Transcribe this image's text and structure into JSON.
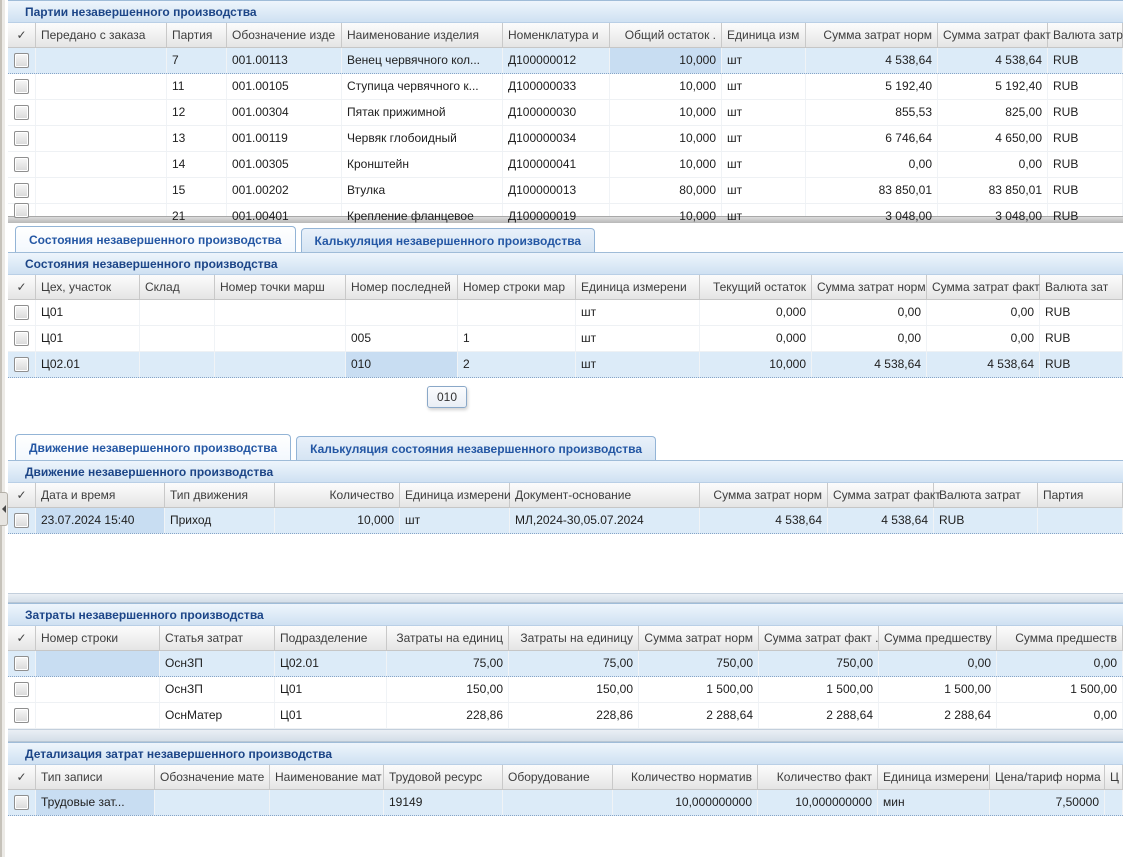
{
  "colors": {
    "panel_title_text": "#1c4587",
    "tab_text": "#2457a4",
    "selected_row_bg": "#dcebf8",
    "selected_cell_bg": "#c8ddf2",
    "panel_header_gradient_top": "#eef5fc",
    "panel_header_gradient_bottom": "#cfe1f2"
  },
  "icons": {
    "select_all_check": "✓",
    "collapse_arrow": "left-triangle"
  },
  "tooltip": {
    "text": "010"
  },
  "tab_groups": [
    {
      "tabs": [
        {
          "label": "Состояния незавершенного производства",
          "active": true
        },
        {
          "label": "Калькуляция незавершенного производства",
          "active": false
        }
      ]
    },
    {
      "tabs": [
        {
          "label": "Движение незавершенного производства",
          "active": true
        },
        {
          "label": "Калькуляция состояния незавершенного производства",
          "active": false
        }
      ]
    }
  ],
  "tables": [
    {
      "id": "batches",
      "title": "Партии незавершенного производства",
      "columns": [
        {
          "label": "Передано с заказа",
          "width": 131,
          "align": "left"
        },
        {
          "label": "Партия",
          "width": 60,
          "align": "left"
        },
        {
          "label": "Обозначение изде",
          "width": 115,
          "align": "left"
        },
        {
          "label": "Наименование изделия",
          "width": 161,
          "align": "left"
        },
        {
          "label": "Номенклатура и",
          "width": 107,
          "align": "left"
        },
        {
          "label": "Общий остаток   .",
          "width": 112,
          "align": "right"
        },
        {
          "label": "Единица изм",
          "width": 84,
          "align": "left"
        },
        {
          "label": "Сумма затрат норм",
          "width": 132,
          "align": "right"
        },
        {
          "label": "Сумма затрат факт",
          "width": 110,
          "align": "right"
        },
        {
          "label": "Валюта затр",
          "width": 75,
          "align": "left"
        }
      ],
      "rows": [
        [
          "",
          "7",
          "001.00113",
          "Венец червячного кол...",
          "Д100000012",
          "10,000",
          "шт",
          "4 538,64",
          "4 538,64",
          "RUB"
        ],
        [
          "",
          "11",
          "001.00105",
          "Ступица червячного к...",
          "Д100000033",
          "10,000",
          "шт",
          "5 192,40",
          "5 192,40",
          "RUB"
        ],
        [
          "",
          "12",
          "001.00304",
          "Пятак прижимной",
          "Д100000030",
          "10,000",
          "шт",
          "855,53",
          "825,00",
          "RUB"
        ],
        [
          "",
          "13",
          "001.00119",
          "Червяк глобоидный",
          "Д100000034",
          "10,000",
          "шт",
          "6 746,64",
          "4 650,00",
          "RUB"
        ],
        [
          "",
          "14",
          "001.00305",
          "Кронштейн",
          "Д100000041",
          "10,000",
          "шт",
          "0,00",
          "0,00",
          "RUB"
        ],
        [
          "",
          "15",
          "001.00202",
          "Втулка",
          "Д100000013",
          "80,000",
          "шт",
          "83 850,01",
          "83 850,01",
          "RUB"
        ]
      ],
      "cut_row": [
        "",
        "21",
        "001.00401",
        "Крепление фланцевое",
        "Д100000019",
        "10,000",
        "шт",
        "3 048,00",
        "3 048,00",
        "RUB"
      ],
      "selected_row": 0,
      "selected_cell": {
        "row": 0,
        "col": 5
      }
    },
    {
      "id": "states",
      "title": "Состояния незавершенного производства",
      "columns": [
        {
          "label": "Цех, участок",
          "width": 104,
          "align": "left"
        },
        {
          "label": "Склад",
          "width": 75,
          "align": "left"
        },
        {
          "label": "Номер точки марш",
          "width": 131,
          "align": "left"
        },
        {
          "label": "Номер последней",
          "width": 112,
          "align": "left"
        },
        {
          "label": "Номер строки мар",
          "width": 118,
          "align": "left"
        },
        {
          "label": "Единица измерени",
          "width": 124,
          "align": "left"
        },
        {
          "label": "Текущий остаток",
          "width": 112,
          "align": "right"
        },
        {
          "label": "Сумма затрат норм",
          "width": 115,
          "align": "right"
        },
        {
          "label": "Сумма затрат факт",
          "width": 113,
          "align": "right"
        },
        {
          "label": "Валюта зат",
          "width": 83,
          "align": "left"
        }
      ],
      "rows": [
        [
          "Ц01",
          "",
          "",
          "",
          "",
          "шт",
          "0,000",
          "0,00",
          "0,00",
          "RUB"
        ],
        [
          "Ц01",
          "",
          "",
          "005",
          "1",
          "шт",
          "0,000",
          "0,00",
          "0,00",
          "RUB"
        ],
        [
          "Ц02.01",
          "",
          "",
          "010",
          "2",
          "шт",
          "10,000",
          "4 538,64",
          "4 538,64",
          "RUB"
        ]
      ],
      "selected_row": 2,
      "selected_cell": {
        "row": 2,
        "col": 3
      }
    },
    {
      "id": "movement",
      "title": "Движение незавершенного производства",
      "columns": [
        {
          "label": "Дата и время",
          "width": 129,
          "align": "left"
        },
        {
          "label": "Тип движения",
          "width": 110,
          "align": "left"
        },
        {
          "label": "Количество",
          "width": 125,
          "align": "right"
        },
        {
          "label": "Единица измерени",
          "width": 110,
          "align": "left"
        },
        {
          "label": "Документ-основание",
          "width": 190,
          "align": "left"
        },
        {
          "label": "Сумма затрат норм",
          "width": 128,
          "align": "right"
        },
        {
          "label": "Сумма затрат факт",
          "width": 106,
          "align": "right"
        },
        {
          "label": "Валюта затрат",
          "width": 104,
          "align": "left"
        },
        {
          "label": "Партия",
          "width": 85,
          "align": "left"
        }
      ],
      "rows": [
        [
          "23.07.2024 15:40",
          "Приход",
          "10,000",
          "шт",
          "МЛ,2024-30,05.07.2024",
          "4 538,64",
          "4 538,64",
          "RUB",
          ""
        ]
      ],
      "selected_row": 0,
      "selected_cell": {
        "row": 0,
        "col": 0
      }
    },
    {
      "id": "costs",
      "title": "Затраты незавершенного производства",
      "columns": [
        {
          "label": "Номер строки",
          "width": 124,
          "align": "left"
        },
        {
          "label": "Статья затрат",
          "width": 115,
          "align": "left"
        },
        {
          "label": "Подразделение",
          "width": 112,
          "align": "left"
        },
        {
          "label": "Затраты на единиц",
          "width": 122,
          "align": "right"
        },
        {
          "label": "Затраты на единицу",
          "width": 130,
          "align": "right"
        },
        {
          "label": "Сумма затрат норм",
          "width": 120,
          "align": "right"
        },
        {
          "label": "Сумма затрат факт   .",
          "width": 120,
          "align": "right"
        },
        {
          "label": "Сумма предшеству",
          "width": 118,
          "align": "right"
        },
        {
          "label": "Сумма предшеств",
          "width": 126,
          "align": "right"
        }
      ],
      "rows": [
        [
          "",
          "ОснЗП",
          "Ц02.01",
          "75,00",
          "75,00",
          "750,00",
          "750,00",
          "0,00",
          "0,00"
        ],
        [
          "",
          "ОснЗП",
          "Ц01",
          "150,00",
          "150,00",
          "1 500,00",
          "1 500,00",
          "1 500,00",
          "1 500,00"
        ],
        [
          "",
          "ОснМатер",
          "Ц01",
          "228,86",
          "228,86",
          "2 288,64",
          "2 288,64",
          "2 288,64",
          "0,00"
        ]
      ],
      "selected_row": 0,
      "selected_cell": {
        "row": 0,
        "col": 0
      }
    },
    {
      "id": "cost-details",
      "title": "Детализация затрат незавершенного производства",
      "columns": [
        {
          "label": "Тип записи",
          "width": 119,
          "align": "left"
        },
        {
          "label": "Обозначение мате",
          "width": 115,
          "align": "left"
        },
        {
          "label": "Наименование мат",
          "width": 114,
          "align": "left"
        },
        {
          "label": "Трудовой ресурс",
          "width": 119,
          "align": "left"
        },
        {
          "label": "Оборудование",
          "width": 110,
          "align": "left"
        },
        {
          "label": "Количество норматив",
          "width": 145,
          "align": "right"
        },
        {
          "label": "Количество факт",
          "width": 120,
          "align": "right"
        },
        {
          "label": "Единица измерени",
          "width": 112,
          "align": "left"
        },
        {
          "label": "Цена/тариф норма",
          "width": 115,
          "align": "right"
        },
        {
          "label": "Ц",
          "width": 18,
          "align": "left"
        }
      ],
      "rows": [
        [
          "Трудовые зат...",
          "",
          "",
          "19149",
          "",
          "10,000000000",
          "10,000000000",
          "мин",
          "7,50000",
          ""
        ]
      ],
      "selected_row": 0,
      "selected_cell": {
        "row": 0,
        "col": 0
      }
    }
  ]
}
